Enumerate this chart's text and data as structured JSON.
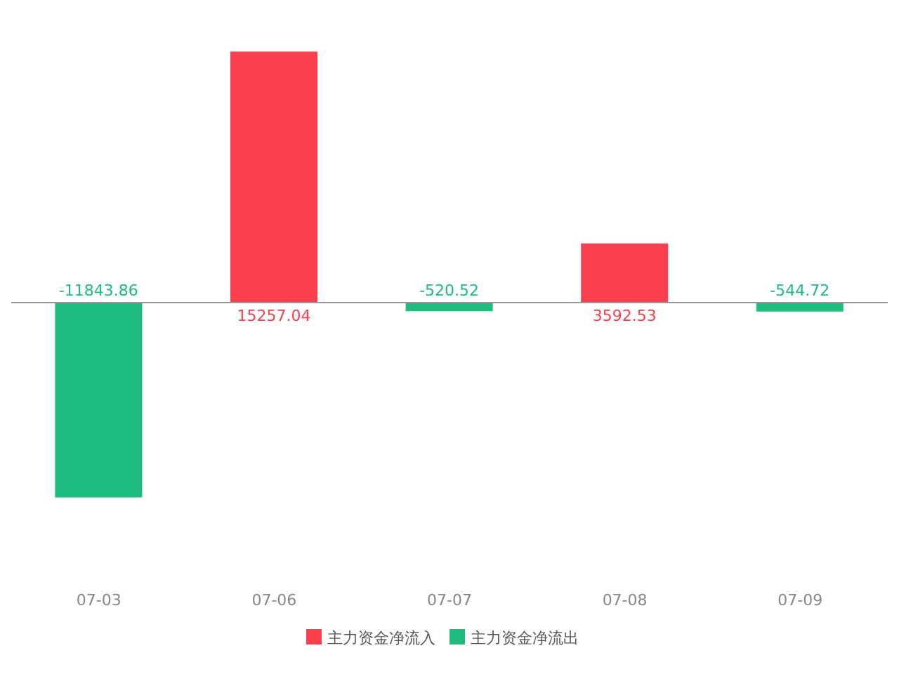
{
  "chart_data": {
    "type": "bar",
    "stacked": true,
    "categories": [
      "07-03",
      "07-06",
      "07-07",
      "07-08",
      "07-09"
    ],
    "series": [
      {
        "name": "主力资金净流入",
        "color": "#fa3f4e",
        "values": [
          null,
          15257.04,
          null,
          3592.53,
          null
        ]
      },
      {
        "name": "主力资金净流出",
        "color": "#20bc7f",
        "values": [
          -11843.86,
          null,
          -520.52,
          null,
          -544.72
        ]
      }
    ],
    "data_labels": true,
    "legend": "bottom"
  }
}
